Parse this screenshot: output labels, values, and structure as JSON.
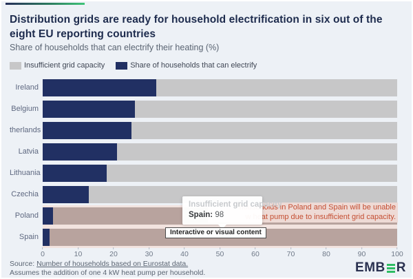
{
  "header": {
    "title": "Distribution grids are ready for household electrification in six out of the eight EU reporting countries",
    "subtitle": "Share of households that can electrify their heating (%)"
  },
  "legend": {
    "items": [
      {
        "label": "Insufficient grid capacity",
        "color": "#c7c7c8"
      },
      {
        "label": "Share of households that can electrify",
        "color": "#213063"
      }
    ]
  },
  "chart_data": {
    "type": "bar",
    "orientation": "horizontal",
    "stacked": true,
    "categories": [
      "Ireland",
      "Belgium",
      "therlands",
      "Latvia",
      "Lithuania",
      "Czechia",
      "Poland",
      "Spain"
    ],
    "series": [
      {
        "name": "Share of households that can electrify",
        "color": "#213063",
        "values": [
          32,
          26,
          25,
          21,
          18,
          13,
          3,
          2
        ]
      },
      {
        "name": "Insufficient grid capacity",
        "color": "#c7c7c8",
        "values": [
          68,
          74,
          75,
          79,
          82,
          87,
          97,
          98
        ]
      }
    ],
    "highlighted_categories": [
      "Poland",
      "Spain"
    ],
    "highlight_bar_color": "#b8a39e",
    "highlight_row_color": "#f2e3df",
    "xlim": [
      0,
      100
    ],
    "x_ticks": [
      0,
      10,
      20,
      30,
      40,
      50,
      60,
      70,
      80,
      90,
      100
    ],
    "grid": false,
    "legend_position": "top"
  },
  "tooltip": {
    "title": "Insufficient grid capacity",
    "series_label": "Spain:",
    "value": "98"
  },
  "badge": {
    "label": "Interactive or visual content"
  },
  "annotation": {
    "line1": "households in Poland and Spain will be unable",
    "line2": "w heat pump due to insufficient grid capacity.",
    "color": "#c44e32"
  },
  "footer": {
    "source_prefix": "Source: ",
    "source_link": "Number of households based on Eurostat data.",
    "note": "Assumes the addition of one 4 kW heat pump per household.",
    "logo_left": "EMB",
    "logo_right": "R"
  }
}
